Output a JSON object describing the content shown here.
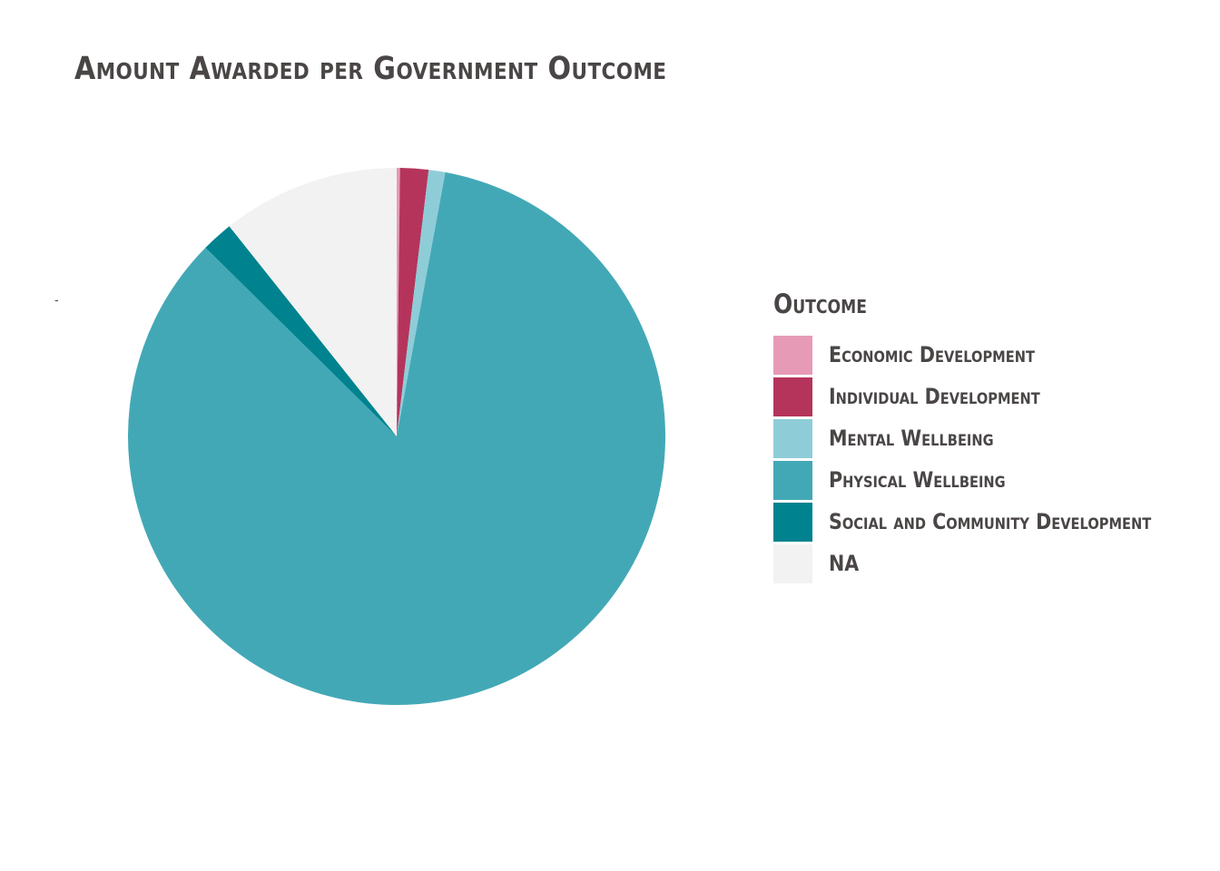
{
  "chart_data": {
    "type": "pie",
    "title": "Amount Awarded per Government Outcome",
    "y_tick_label": "-",
    "legend": {
      "title": "Outcome",
      "position": "right"
    },
    "grid": false,
    "slices": [
      {
        "label": "Economic Development",
        "value": 0.2,
        "color": "#e79ab6"
      },
      {
        "label": "Individual Development",
        "value": 1.7,
        "color": "#b5345b"
      },
      {
        "label": "Mental Wellbeing",
        "value": 1.0,
        "color": "#8ecdd7"
      },
      {
        "label": "Physical Wellbeing",
        "value": 84.5,
        "color": "#43a8b6"
      },
      {
        "label": "Social and Community Development",
        "value": 1.9,
        "color": "#00838f"
      },
      {
        "label": "NA",
        "value": 10.7,
        "color": "#f2f2f2"
      }
    ],
    "unit": "percent of total amount awarded (estimated)"
  }
}
